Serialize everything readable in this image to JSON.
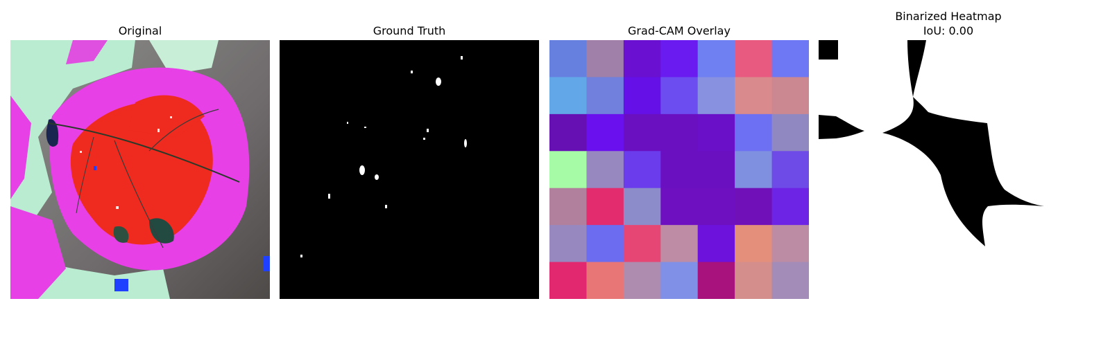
{
  "panels": [
    {
      "title": "Original"
    },
    {
      "title": "Ground Truth"
    },
    {
      "title": "Grad-CAM Overlay"
    },
    {
      "title": "Binarized Heatmap",
      "subtitle": "IoU: 0.00"
    }
  ],
  "gradcam_grid": [
    [
      "#6680e0",
      "#a07fa8",
      "#6a10d0",
      "#6a1cf0",
      "#6f80f2",
      "#e85a80",
      "#6f78f4"
    ],
    [
      "#62a8e8",
      "#7080dc",
      "#6410e6",
      "#6c4ef0",
      "#8890e0",
      "#d88a8c",
      "#cc8890"
    ],
    [
      "#6610b4",
      "#6a10ee",
      "#6a10c0",
      "#6a10c0",
      "#6a10c8",
      "#6e70f4",
      "#9088c0"
    ],
    [
      "#a6fca6",
      "#9888c0",
      "#6a3cec",
      "#6a10c0",
      "#6a10c0",
      "#8090e0",
      "#6e4ae6"
    ],
    [
      "#b0809c",
      "#e22c6e",
      "#8c8cca",
      "#6e10c0",
      "#6e10c0",
      "#7010b8",
      "#6e24e4"
    ],
    [
      "#9888c0",
      "#6c6cf0",
      "#e64674",
      "#be8ca4",
      "#6c12dc",
      "#e48e7c",
      "#bc8ca4"
    ],
    [
      "#e2286e",
      "#e87676",
      "#ae8cb0",
      "#8090e6",
      "#a8127c",
      "#d48e8c",
      "#a48cb8"
    ]
  ],
  "colors": {
    "leaf_red": "#ee2b1e",
    "leaf_magenta": "#e640e6",
    "pale_green": "#b9ecd0",
    "mask_black": "#000000",
    "mask_white": "#ffffff"
  }
}
